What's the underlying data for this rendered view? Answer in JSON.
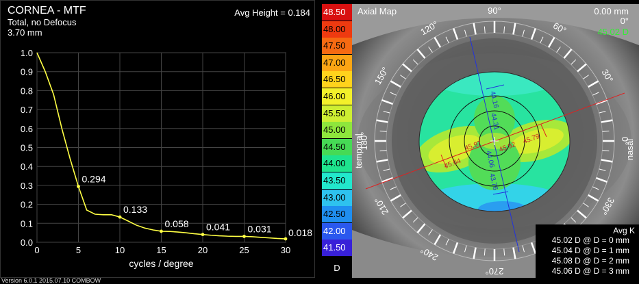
{
  "mtf": {
    "title": "CORNEA - MTF",
    "subtitle": "Total, no Defocus",
    "pupil": "3.70 mm",
    "avg_height": "Avg Height = 0.184"
  },
  "chart_data": {
    "type": "line",
    "xlabel": "cycles / degree",
    "ylabel": "",
    "xlim": [
      0,
      30
    ],
    "ylim": [
      0,
      1
    ],
    "x_ticks": [
      "0",
      "5",
      "10",
      "15",
      "20",
      "25",
      "30"
    ],
    "y_ticks": [
      "0.0",
      "0.1",
      "0.2",
      "0.3",
      "0.4",
      "0.5",
      "0.6",
      "0.7",
      "0.8",
      "0.9",
      "1.0"
    ],
    "grid": true,
    "series": [
      {
        "color": "#ffff44",
        "x": [
          0,
          1,
          2,
          3,
          4,
          5,
          6,
          7,
          8,
          9,
          10,
          11,
          12,
          13,
          14,
          15,
          16,
          17,
          18,
          19,
          20,
          21,
          22,
          23,
          24,
          25,
          26,
          27,
          28,
          29,
          30
        ],
        "values": [
          1.0,
          0.9,
          0.78,
          0.6,
          0.44,
          0.294,
          0.17,
          0.148,
          0.145,
          0.145,
          0.133,
          0.112,
          0.09,
          0.075,
          0.065,
          0.058,
          0.057,
          0.054,
          0.05,
          0.045,
          0.041,
          0.037,
          0.034,
          0.032,
          0.031,
          0.031,
          0.029,
          0.026,
          0.023,
          0.02,
          0.018
        ]
      }
    ],
    "data_labels": [
      {
        "x": 5,
        "y": 0.294,
        "text": "0.294"
      },
      {
        "x": 10,
        "y": 0.133,
        "text": "0.133"
      },
      {
        "x": 15,
        "y": 0.058,
        "text": "0.058"
      },
      {
        "x": 20,
        "y": 0.041,
        "text": "0.041"
      },
      {
        "x": 25,
        "y": 0.031,
        "text": "0.031"
      },
      {
        "x": 30,
        "y": 0.018,
        "text": "0.018"
      }
    ]
  },
  "scale": {
    "unit": "D",
    "steps": [
      {
        "label": "48.50",
        "color": "#d81010"
      },
      {
        "label": "48.00",
        "color": "#ee3a10"
      },
      {
        "label": "47.50",
        "color": "#f66a12"
      },
      {
        "label": "47.00",
        "color": "#fba514"
      },
      {
        "label": "46.50",
        "color": "#ffd21c"
      },
      {
        "label": "46.00",
        "color": "#f3f02a"
      },
      {
        "label": "45.50",
        "color": "#cdee32"
      },
      {
        "label": "45.00",
        "color": "#8ee63c"
      },
      {
        "label": "44.50",
        "color": "#46da55"
      },
      {
        "label": "44.00",
        "color": "#1ee38e"
      },
      {
        "label": "43.50",
        "color": "#22e8cc"
      },
      {
        "label": "43.00",
        "color": "#2ec2ee"
      },
      {
        "label": "42.50",
        "color": "#1f8ef0"
      },
      {
        "label": "42.00",
        "color": "#2a58ee"
      },
      {
        "label": "41.50",
        "color": "#3820d8"
      }
    ]
  },
  "map": {
    "title": "Axial Map",
    "top_right": [
      "0.00 mm",
      "0°",
      "45.02 D"
    ],
    "top_right_colors": [
      "#ffffff",
      "#ffffff",
      "#33ee33"
    ],
    "side_left": "temporal",
    "side_right": "nasal",
    "angles": [
      "90°",
      "60°",
      "30°",
      "0°",
      "330°",
      "300°",
      "270°",
      "240°",
      "210°",
      "180°",
      "150°",
      "120°"
    ],
    "readings": [
      "44.16",
      "44.31",
      "44.06",
      "43.76",
      "45.64",
      "45.97",
      "45.92",
      "45.79"
    ],
    "avg_k_title": "Avg K",
    "avg_k": [
      "45.02 D @ D = 0 mm",
      "45.04 D @ D = 1 mm",
      "45.08 D @ D = 2 mm",
      "45.06 D @ D = 3 mm"
    ]
  },
  "version": "Version 6.0.1 2015.07.10 COMBOW"
}
